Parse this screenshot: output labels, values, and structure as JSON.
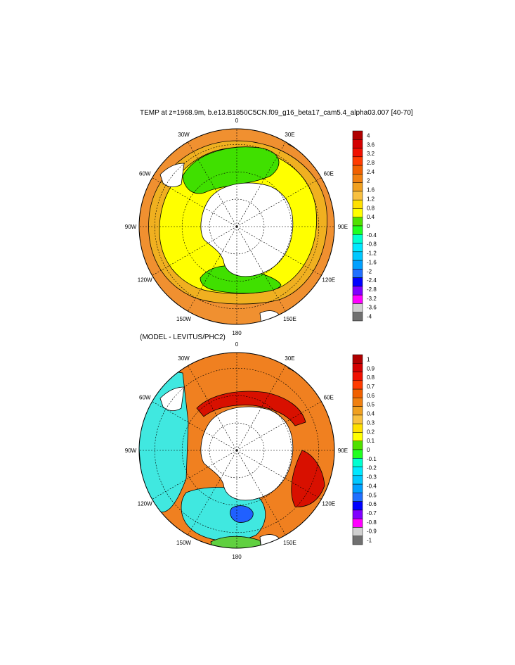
{
  "main_title": "TEMP at z=1968.9m, b.e13.B1850C5CN.f09_g16_beta17_cam5.4_alpha03.007 [40-70]",
  "sub_title": "(MODEL - LEVITUS/PHC2)",
  "lon_labels": [
    "0",
    "30E",
    "60E",
    "90E",
    "120E",
    "150E",
    "180",
    "150W",
    "120W",
    "90W",
    "60W",
    "30W"
  ],
  "top_colorbar": {
    "labels": [
      "4",
      "3.6",
      "3.2",
      "2.8",
      "2.4",
      "2",
      "1.6",
      "1.2",
      "0.8",
      "0.4",
      "0",
      "-0.4",
      "-0.8",
      "-1.2",
      "-1.6",
      "-2",
      "-2.4",
      "-2.8",
      "-3.2",
      "-3.6",
      "-4"
    ],
    "colors": [
      "#b00000",
      "#d40000",
      "#f01000",
      "#ff3b00",
      "#f06000",
      "#f08010",
      "#f0a020",
      "#f8c040",
      "#ffe000",
      "#ffff00",
      "#50e000",
      "#20ff20",
      "#00ffd0",
      "#00e8ff",
      "#00c8ff",
      "#00a0ff",
      "#2070ff",
      "#0000ff",
      "#8000ff",
      "#ff00ff",
      "#d0d0d0",
      "#707070"
    ]
  },
  "bottom_colorbar": {
    "labels": [
      "1",
      "0.9",
      "0.8",
      "0.7",
      "0.6",
      "0.5",
      "0.4",
      "0.3",
      "0.2",
      "0.1",
      "0",
      "-0.1",
      "-0.2",
      "-0.3",
      "-0.4",
      "-0.5",
      "-0.6",
      "-0.7",
      "-0.8",
      "-0.9",
      "-1"
    ],
    "colors": [
      "#b00000",
      "#d40000",
      "#f01000",
      "#ff3b00",
      "#f06000",
      "#f08010",
      "#f0a020",
      "#f8c040",
      "#ffe000",
      "#ffff00",
      "#50e000",
      "#20ff20",
      "#00ffd0",
      "#00e8ff",
      "#00c8ff",
      "#00a0ff",
      "#2070ff",
      "#0000ff",
      "#8000ff",
      "#ff00ff",
      "#d0d0d0",
      "#707070"
    ]
  },
  "colors": {
    "land": "#ffffff",
    "outline": "#000000",
    "top_ocean": "#f09030",
    "top_inner": "#f0b020",
    "top_yellow": "#ffff00",
    "top_green": "#40e000",
    "bottom_red": "#d81000",
    "bottom_orange": "#f08020",
    "bottom_cyan": "#40e8e0",
    "bottom_green": "#60d040",
    "bottom_blue": "#2060ff"
  }
}
